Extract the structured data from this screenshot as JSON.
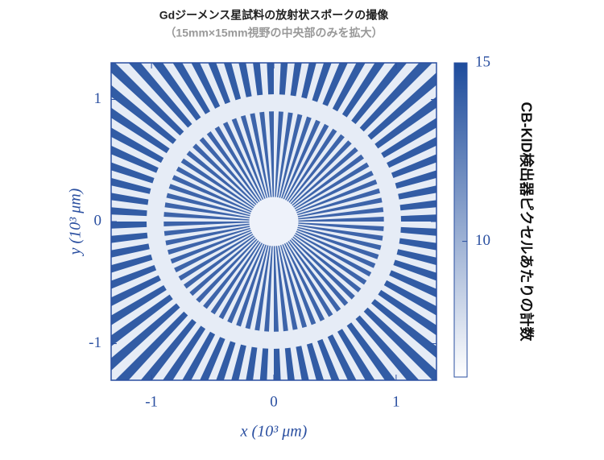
{
  "chart_data": {
    "type": "image",
    "title": "Gdジーメンス星試料の放射状スポークの撮像",
    "subtitle": "（15mm×15mm視野の中央部のみを拡大）",
    "xlabel": "x (10³ μm)",
    "ylabel": "y (10³ μm)",
    "xlim": [
      -1.33,
      1.33
    ],
    "ylim": [
      -1.3,
      1.3
    ],
    "xticks": [
      -1,
      0,
      1
    ],
    "yticks": [
      -1,
      0,
      1
    ],
    "colorbar": {
      "label": "CB-KID検出器ピクセルあたりの計数",
      "clim": [
        6.2,
        15
      ],
      "ticks": [
        10,
        15
      ],
      "colors": [
        "#ffffff",
        "#1e4c9c"
      ]
    },
    "axis_color": "#2a4fa0"
  }
}
